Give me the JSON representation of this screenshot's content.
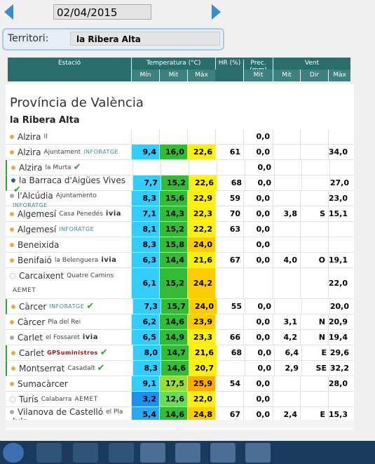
{
  "toolbar": {
    "date": "02/04/2015",
    "territori_label": "Territori:",
    "territori": "la Ribera Alta"
  },
  "header": {
    "estacio": "Estació",
    "temperatura": "Temperatura (°C)",
    "hr": "HR (%)",
    "prec": "Prec. (mm)",
    "vent": "Vent",
    "sub": [
      "Mín",
      "Mit",
      "Màx",
      "Mit",
      "Mit",
      "Dir",
      "Màx"
    ]
  },
  "section": "Província de València",
  "subsection": "la Ribera Alta",
  "palette": {
    "dot_orange": "#e8a940",
    "dot_grey": "#a8a8a8",
    "dot_teal": "#1d6b6b",
    "verified": "#33a02c"
  },
  "rows": [
    {
      "name": "Alzira",
      "sub": "II",
      "dot": "dot_orange",
      "prec": "0,0"
    },
    {
      "name": "Alzira",
      "sub": "Ajuntament",
      "tag": "INFORATGE",
      "dot": "dot_orange",
      "tmin": "9,4",
      "tmit": "16,0",
      "tmax": "22,6",
      "hr": "61",
      "prec": "0,0",
      "vmax": "34,0",
      "bg": [
        "#33ccff",
        "#33bb33",
        "#ffee11"
      ]
    },
    {
      "name": "Alzira",
      "sub": "la Murta",
      "dot": "dot_orange",
      "verified": true,
      "prec": "0,0"
    },
    {
      "name": "la Barraca d'Aigües Vives",
      "dot": "dot_teal",
      "verified": true,
      "tmin": "7,7",
      "tmit": "15,2",
      "tmax": "22,6",
      "hr": "68",
      "prec": "0,0",
      "vmax": "27,0",
      "bg": [
        "#33ccff",
        "#33bb33",
        "#ffee11"
      ]
    },
    {
      "name": "l'Alcúdia",
      "sub": "Ajuntamento",
      "tag": "INFORATGE",
      "dot": "dot_grey",
      "tmin": "8,3",
      "tmit": "15,6",
      "tmax": "22,9",
      "hr": "59",
      "prec": "0,0",
      "vmax": "23,0",
      "bg": [
        "#33ccff",
        "#33bb33",
        "#ffee11"
      ]
    },
    {
      "name": "Algemesí",
      "sub": "Casa Penedés",
      "tag": "ivia",
      "dot": "dot_orange",
      "tmin": "7,1",
      "tmit": "14,3",
      "tmax": "22,3",
      "hr": "70",
      "prec": "0,0",
      "vmit": "3,8",
      "dir": "S",
      "vmax": "15,1",
      "bg": [
        "#33ccff",
        "#33bb33",
        "#ffee11"
      ]
    },
    {
      "name": "Algemesí",
      "tag": "INFORATGE",
      "dot": "dot_orange",
      "tmin": "8,1",
      "tmit": "15,2",
      "tmax": "22,2",
      "hr": "63",
      "prec": "0,0",
      "bg": [
        "#33ccff",
        "#33bb33",
        "#ffee11"
      ]
    },
    {
      "name": "Beneixida",
      "dot": "dot_orange",
      "tmin": "8,3",
      "tmit": "15,8",
      "tmax": "24,0",
      "prec": "0,0",
      "bg": [
        "#33ccff",
        "#33bb33",
        "#ffcc00"
      ]
    },
    {
      "name": "Benifaió",
      "sub": "la Belenguera",
      "tag": "ivia",
      "dot": "dot_orange",
      "tmin": "6,3",
      "tmit": "14,4",
      "tmax": "21,6",
      "hr": "67",
      "prec": "0,0",
      "vmit": "4,0",
      "dir": "O",
      "vmax": "19,1",
      "bg": [
        "#33ccff",
        "#33bb33",
        "#ffee11"
      ]
    },
    {
      "name": "Carcaixent",
      "sub": "Quatre Camins",
      "tag": "AEMET",
      "dot": "hollow",
      "tmin": "6,1",
      "tmit": "15,2",
      "tmax": "24,2",
      "vmax": "22,0",
      "bg": [
        "#33ccff",
        "#33bb33",
        "#ffcc00"
      ]
    },
    {
      "name": "Càrcer",
      "tag": "INFORATGE",
      "dot": "dot_orange",
      "verified": true,
      "tmin": "7,3",
      "tmit": "15,7",
      "tmax": "24,0",
      "hr": "55",
      "prec": "0,0",
      "vmax": "20,0",
      "bg": [
        "#33ccff",
        "#33bb33",
        "#ffcc00"
      ]
    },
    {
      "name": "Càrcer",
      "sub": "Pla del Rei",
      "dot": "dot_orange",
      "tmin": "6,2",
      "tmit": "14,6",
      "tmax": "23,9",
      "prec": "0,0",
      "vmit": "3,1",
      "dir": "N",
      "vmax": "20,9",
      "bg": [
        "#33ccff",
        "#33bb33",
        "#ffcc00"
      ]
    },
    {
      "name": "Carlet",
      "sub": "el Fossaret",
      "tag": "ivia",
      "dot": "dot_grey",
      "tmin": "6,5",
      "tmit": "14,9",
      "tmax": "23,3",
      "hr": "66",
      "prec": "0,0",
      "vmit": "4,2",
      "dir": "N",
      "vmax": "19,4",
      "bg": [
        "#33ccff",
        "#33bb33",
        "#ffee11"
      ]
    },
    {
      "name": "Carlet",
      "tag": "GPSuministros",
      "dot": "dot_orange",
      "verified": true,
      "tmin": "8,0",
      "tmit": "14,7",
      "tmax": "21,6",
      "hr": "68",
      "prec": "0,0",
      "vmit": "6,4",
      "dir": "E",
      "vmax": "29,6",
      "bg": [
        "#33ccff",
        "#33bb33",
        "#ffee11"
      ]
    },
    {
      "name": "Montserrat",
      "sub": "Casadalt",
      "dot": "dot_orange",
      "verified": true,
      "tmin": "8,3",
      "tmit": "14,6",
      "tmax": "20,7",
      "prec": "0,0",
      "vmit": "2,9",
      "dir": "SE",
      "vmax": "32,2",
      "bg": [
        "#33ccff",
        "#33bb33",
        "#ffee11"
      ]
    },
    {
      "name": "Sumacàrcer",
      "dot": "dot_orange",
      "tmin": "9,1",
      "tmit": "17,5",
      "tmax": "25,9",
      "hr": "54",
      "prec": "0,0",
      "vmax": "28,0",
      "bg": [
        "#33ccff",
        "#99dd33",
        "#ffaa00"
      ]
    },
    {
      "name": "Turís",
      "sub": "Calabarra",
      "tag": "AEMET",
      "dot": "hollow",
      "tmin": "3,2",
      "tmit": "12,6",
      "tmax": "22,0",
      "prec": "0,0",
      "bg": [
        "#1e90ee",
        "#66dd55",
        "#ffee11"
      ]
    },
    {
      "name": "Vilanova de Castelló",
      "sub": "el Pla",
      "tag": "ivia",
      "dot": "dot_grey",
      "tmin": "5,4",
      "tmit": "14,6",
      "tmax": "24,8",
      "hr": "67",
      "prec": "0,0",
      "vmit": "2,4",
      "dir": "E",
      "vmax": "15,3",
      "bg": [
        "#29aaf0",
        "#33bb33",
        "#ffcc00"
      ]
    }
  ]
}
